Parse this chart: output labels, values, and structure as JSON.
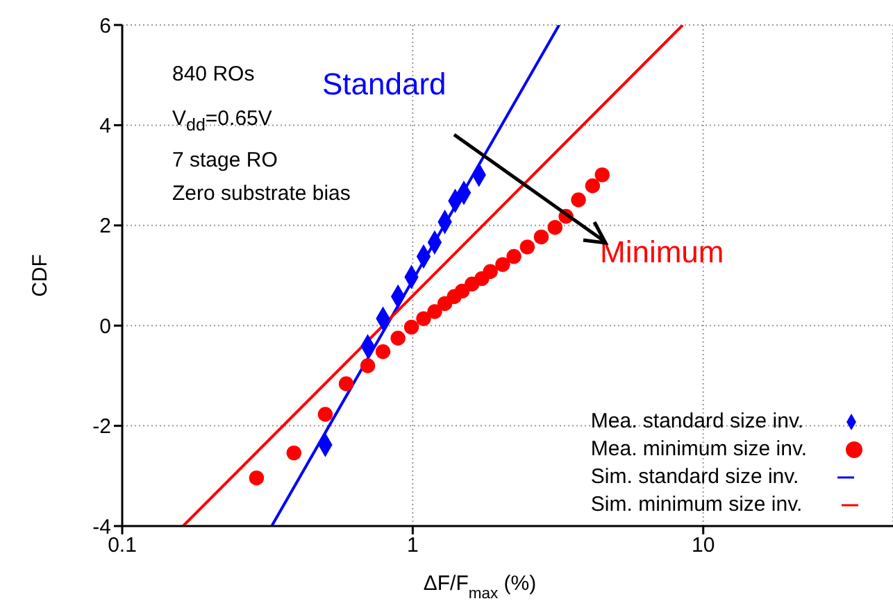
{
  "chart_data": {
    "type": "scatter",
    "xlabel": "ΔF/F$_{max}$ (%)",
    "ylabel": "CDF",
    "log": "x",
    "grid": true,
    "legend": "bottom right",
    "xlim": [
      0.1,
      45
    ],
    "xticks": [
      0.1,
      1,
      10
    ],
    "ylim": [
      -4,
      6
    ],
    "yticks": [
      -4,
      -2,
      0,
      2,
      4,
      6
    ],
    "annotations": [
      "840 ROs",
      "V$_{dd}$=0.65V",
      "7 stage RO",
      "Zero substrate bias",
      "Standard",
      "Minimum"
    ],
    "series": [
      {
        "name": "Mea. standard size inv.",
        "type": "scatter",
        "marker": "diamond",
        "color": "#0000ff",
        "x": [
          0.5,
          0.7,
          0.79,
          0.89,
          0.99,
          1.09,
          1.19,
          1.29,
          1.4,
          1.5,
          1.69
        ],
        "values": [
          -2.38,
          -0.41,
          0.14,
          0.58,
          0.97,
          1.38,
          1.66,
          2.07,
          2.49,
          2.65,
          3.01
        ]
      },
      {
        "name": "Mea. minimum size inv.",
        "type": "scatter",
        "marker": "circle",
        "color": "#ff0000",
        "x": [
          0.29,
          0.39,
          0.5,
          0.59,
          0.7,
          0.79,
          0.89,
          0.99,
          1.09,
          1.19,
          1.29,
          1.39,
          1.48,
          1.6,
          1.73,
          1.85,
          2.04,
          2.23,
          2.48,
          2.77,
          3.09,
          3.37,
          3.72,
          4.16,
          4.49
        ],
        "values": [
          -3.04,
          -2.54,
          -1.77,
          -1.16,
          -0.8,
          -0.52,
          -0.25,
          -0.03,
          0.14,
          0.28,
          0.44,
          0.58,
          0.69,
          0.83,
          0.94,
          1.08,
          1.22,
          1.38,
          1.57,
          1.77,
          1.96,
          2.18,
          2.51,
          2.79,
          3.01
        ]
      },
      {
        "name": "Sim. standard size inv.",
        "type": "line",
        "marker": "none",
        "color": "#0000ff",
        "x": [
          0.327,
          3.19
        ],
        "values": [
          -4,
          6
        ]
      },
      {
        "name": "Sim. minimum size inv.",
        "type": "line",
        "marker": "none",
        "color": "#ff0000",
        "x": [
          0.162,
          8.5
        ],
        "values": [
          -4,
          6
        ]
      }
    ]
  }
}
